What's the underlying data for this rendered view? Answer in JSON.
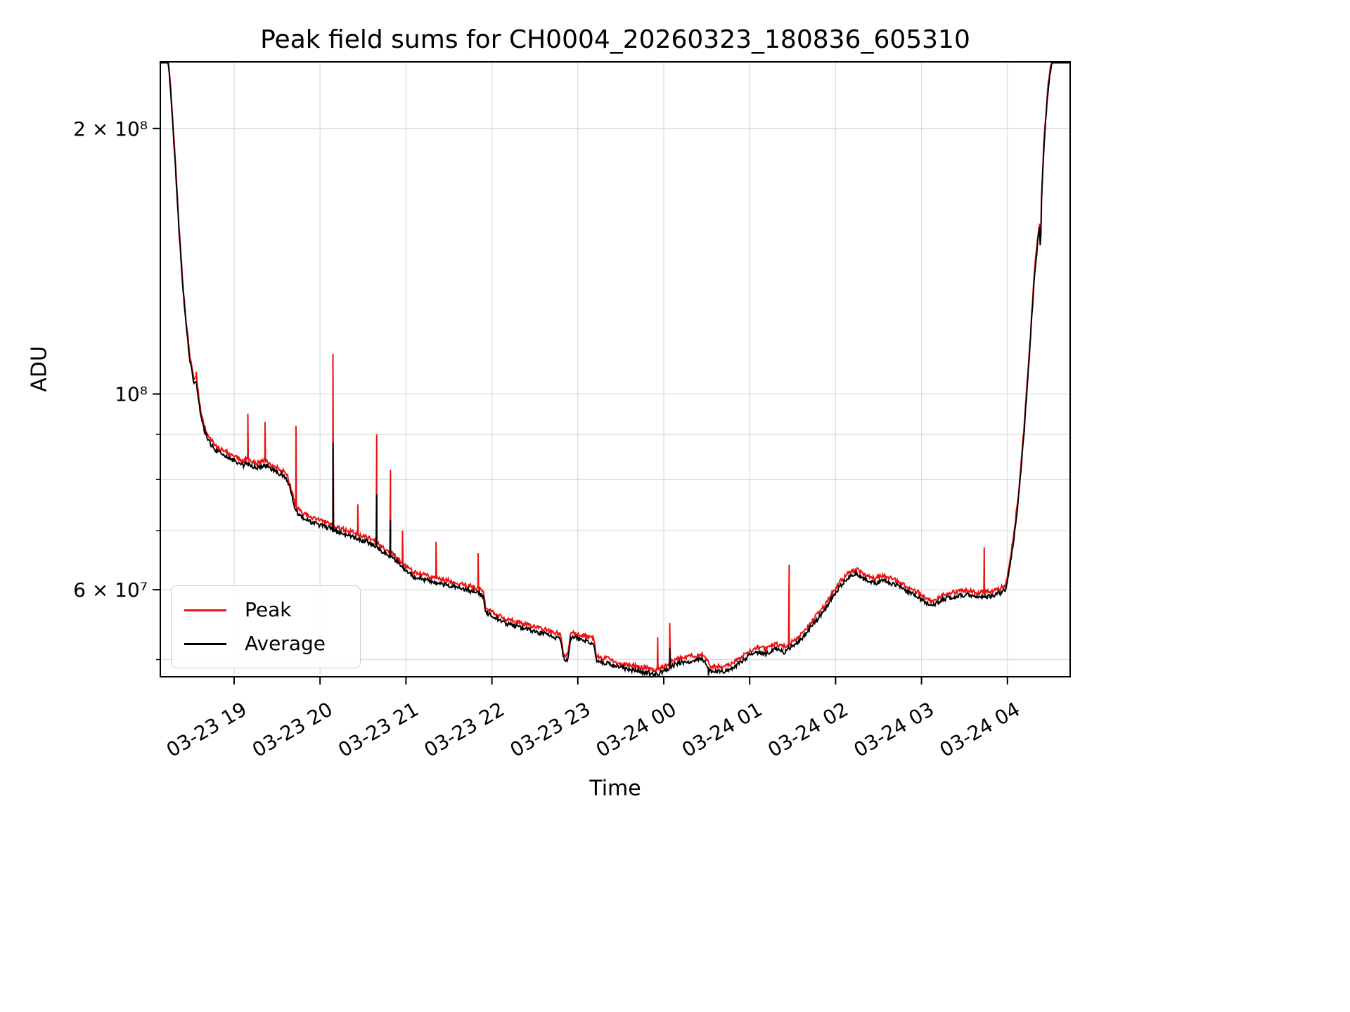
{
  "chart_data": {
    "type": "line",
    "title": "Peak field sums for CH0004_20260323_180836_605310",
    "xlabel": "Time",
    "ylabel": "ADU",
    "y_scale": "log",
    "grid": true,
    "legend_position": "lower-left",
    "x_ticks": [
      {
        "hour": 1,
        "label": "03-23 19"
      },
      {
        "hour": 2,
        "label": "03-23 20"
      },
      {
        "hour": 3,
        "label": "03-23 21"
      },
      {
        "hour": 4,
        "label": "03-23 22"
      },
      {
        "hour": 5,
        "label": "03-23 23"
      },
      {
        "hour": 6,
        "label": "03-24 00"
      },
      {
        "hour": 7,
        "label": "03-24 01"
      },
      {
        "hour": 8,
        "label": "03-24 02"
      },
      {
        "hour": 9,
        "label": "03-24 03"
      },
      {
        "hour": 10,
        "label": "03-24 04"
      }
    ],
    "y_ticks_labeled": [
      {
        "value": 200000000.0,
        "label": "2 × 10⁸"
      },
      {
        "value": 100000000.0,
        "label": "10⁸"
      },
      {
        "value": 60000000.0,
        "label": "6 × 10⁷"
      }
    ],
    "y_ticks_minor": [
      50000000.0,
      70000000.0,
      80000000.0,
      90000000.0
    ],
    "grid_y": [
      50000000.0,
      60000000.0,
      70000000.0,
      80000000.0,
      90000000.0,
      100000000.0,
      200000000.0
    ],
    "xlim_hours": [
      0.141,
      10.73
    ],
    "x_hours_origin": "03-23 18:00",
    "ylim": [
      47800000.0,
      238000000.0
    ],
    "series": [
      {
        "name": "Peak",
        "color": "#ee1111"
      },
      {
        "name": "Average",
        "color": "#000000"
      }
    ],
    "peak_offset_ratio": 1.012,
    "noise": {
      "average": 0.006,
      "peak": 0.006
    },
    "average_keypoints": [
      [
        0.141,
        248000000.0
      ],
      [
        0.2,
        246000000.0
      ],
      [
        0.24,
        234000000.0
      ],
      [
        0.28,
        206000000.0
      ],
      [
        0.32,
        178000000.0
      ],
      [
        0.36,
        152000000.0
      ],
      [
        0.4,
        133000000.0
      ],
      [
        0.44,
        120000000.0
      ],
      [
        0.48,
        110000000.0
      ],
      [
        0.53,
        103000000.0
      ],
      [
        0.56,
        103500000.0
      ],
      [
        0.6,
        96000000.0
      ],
      [
        0.65,
        91000000.0
      ],
      [
        0.72,
        88000000.0
      ],
      [
        0.8,
        86000000.0
      ],
      [
        0.9,
        85000000.0
      ],
      [
        1.0,
        84000000.0
      ],
      [
        1.1,
        83000000.0
      ],
      [
        1.16,
        83500000.0
      ],
      [
        1.25,
        82500000.0
      ],
      [
        1.36,
        83000000.0
      ],
      [
        1.45,
        82000000.0
      ],
      [
        1.55,
        81000000.0
      ],
      [
        1.62,
        80000000.0
      ],
      [
        1.68,
        76000000.0
      ],
      [
        1.72,
        73500000.0
      ],
      [
        1.8,
        72500000.0
      ],
      [
        1.9,
        71500000.0
      ],
      [
        2.0,
        71000000.0
      ],
      [
        2.1,
        70500000.0
      ],
      [
        2.15,
        70000000.0
      ],
      [
        2.25,
        69500000.0
      ],
      [
        2.35,
        69000000.0
      ],
      [
        2.44,
        68500000.0
      ],
      [
        2.55,
        68000000.0
      ],
      [
        2.66,
        67000000.0
      ],
      [
        2.75,
        66000000.0
      ],
      [
        2.82,
        65500000.0
      ],
      [
        2.9,
        64500000.0
      ],
      [
        3.0,
        63000000.0
      ],
      [
        3.1,
        62000000.0
      ],
      [
        3.25,
        61500000.0
      ],
      [
        3.4,
        61000000.0
      ],
      [
        3.55,
        60500000.0
      ],
      [
        3.7,
        60000000.0
      ],
      [
        3.84,
        59500000.0
      ],
      [
        3.9,
        59000000.0
      ],
      [
        3.93,
        56500000.0
      ],
      [
        4.0,
        56000000.0
      ],
      [
        4.15,
        55000000.0
      ],
      [
        4.3,
        54500000.0
      ],
      [
        4.45,
        54000000.0
      ],
      [
        4.6,
        53500000.0
      ],
      [
        4.72,
        53000000.0
      ],
      [
        4.8,
        52800000.0
      ],
      [
        4.83,
        50200000.0
      ],
      [
        4.88,
        50000000.0
      ],
      [
        4.92,
        53000000.0
      ],
      [
        5.0,
        52800000.0
      ],
      [
        5.1,
        52500000.0
      ],
      [
        5.18,
        52200000.0
      ],
      [
        5.22,
        49800000.0
      ],
      [
        5.35,
        49500000.0
      ],
      [
        5.45,
        49000000.0
      ],
      [
        5.58,
        48800000.0
      ],
      [
        5.7,
        48500000.0
      ],
      [
        5.8,
        48300000.0
      ],
      [
        5.9,
        48000000.0
      ],
      [
        6.0,
        48500000.0
      ],
      [
        6.07,
        49000000.0
      ],
      [
        6.15,
        49500000.0
      ],
      [
        6.3,
        49800000.0
      ],
      [
        6.45,
        50000000.0
      ],
      [
        6.55,
        48500000.0
      ],
      [
        6.7,
        48500000.0
      ],
      [
        6.8,
        49000000.0
      ],
      [
        6.9,
        49700000.0
      ],
      [
        7.0,
        50500000.0
      ],
      [
        7.1,
        51000000.0
      ],
      [
        7.2,
        50800000.0
      ],
      [
        7.3,
        51500000.0
      ],
      [
        7.4,
        51000000.0
      ],
      [
        7.5,
        51800000.0
      ],
      [
        7.62,
        53000000.0
      ],
      [
        7.75,
        55000000.0
      ],
      [
        7.85,
        56500000.0
      ],
      [
        7.95,
        58500000.0
      ],
      [
        8.05,
        60500000.0
      ],
      [
        8.15,
        62000000.0
      ],
      [
        8.25,
        62500000.0
      ],
      [
        8.35,
        61500000.0
      ],
      [
        8.45,
        61000000.0
      ],
      [
        8.55,
        61500000.0
      ],
      [
        8.65,
        61000000.0
      ],
      [
        8.75,
        60500000.0
      ],
      [
        8.85,
        59500000.0
      ],
      [
        8.95,
        59000000.0
      ],
      [
        9.05,
        58000000.0
      ],
      [
        9.15,
        57500000.0
      ],
      [
        9.25,
        58500000.0
      ],
      [
        9.4,
        59000000.0
      ],
      [
        9.55,
        59200000.0
      ],
      [
        9.65,
        58800000.0
      ],
      [
        9.8,
        59000000.0
      ],
      [
        9.92,
        59500000.0
      ],
      [
        9.98,
        60000000.0
      ],
      [
        10.02,
        63000000.0
      ],
      [
        10.08,
        69000000.0
      ],
      [
        10.14,
        78000000.0
      ],
      [
        10.2,
        92000000.0
      ],
      [
        10.26,
        112000000.0
      ],
      [
        10.32,
        138000000.0
      ],
      [
        10.365,
        152000000.0
      ],
      [
        10.378,
        156000000.0
      ],
      [
        10.385,
        134000000.0
      ],
      [
        10.392,
        162000000.0
      ],
      [
        10.43,
        195000000.0
      ],
      [
        10.48,
        225000000.0
      ],
      [
        10.53,
        242000000.0
      ],
      [
        10.59,
        248000000.0
      ],
      [
        10.73,
        250000000.0
      ]
    ],
    "peak_spikes": [
      [
        0.56,
        106000000.0
      ],
      [
        1.16,
        95000000.0
      ],
      [
        1.36,
        93000000.0
      ],
      [
        1.72,
        92000000.0
      ],
      [
        2.15,
        111000000.0
      ],
      [
        2.44,
        75000000.0
      ],
      [
        2.66,
        90000000.0
      ],
      [
        2.82,
        82000000.0
      ],
      [
        2.96,
        70000000.0
      ],
      [
        3.35,
        68000000.0
      ],
      [
        3.84,
        66000000.0
      ],
      [
        5.93,
        53000000.0
      ],
      [
        6.07,
        55000000.0
      ],
      [
        7.46,
        64000000.0
      ],
      [
        9.73,
        67000000.0
      ]
    ],
    "average_spikes": [
      [
        2.15,
        88000000.0
      ],
      [
        2.66,
        77000000.0
      ],
      [
        2.82,
        72000000.0
      ],
      [
        5.88,
        47400000.0
      ],
      [
        6.07,
        51500000.0
      ],
      [
        6.52,
        47400000.0
      ]
    ]
  }
}
